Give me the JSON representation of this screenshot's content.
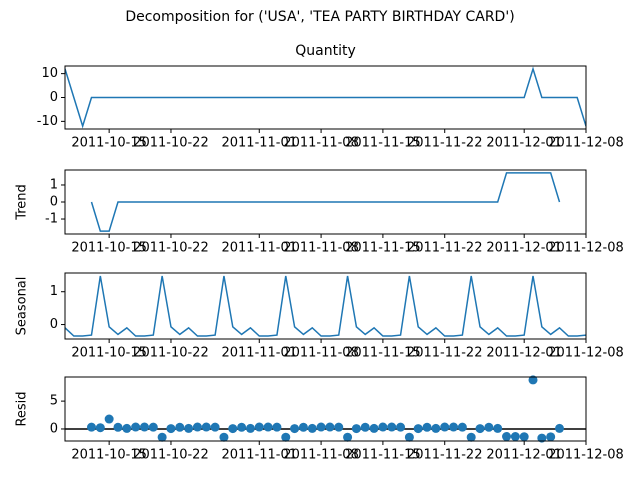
{
  "title": "Decomposition for ('USA', 'TEA PARTY BIRTHDAY CARD')",
  "chart_data": [
    {
      "type": "line",
      "title": "Quantity",
      "color": "#1f77b4",
      "x": [
        "2011-10-10",
        "2011-10-11",
        "2011-10-12",
        "2011-10-13",
        "2011-10-14",
        "2011-10-15",
        "2011-10-16",
        "2011-10-17",
        "2011-10-18",
        "2011-10-19",
        "2011-10-20",
        "2011-10-21",
        "2011-10-22",
        "2011-10-23",
        "2011-10-24",
        "2011-10-25",
        "2011-10-26",
        "2011-10-27",
        "2011-10-28",
        "2011-10-29",
        "2011-10-30",
        "2011-10-31",
        "2011-11-01",
        "2011-11-02",
        "2011-11-03",
        "2011-11-04",
        "2011-11-05",
        "2011-11-06",
        "2011-11-07",
        "2011-11-08",
        "2011-11-09",
        "2011-11-10",
        "2011-11-11",
        "2011-11-12",
        "2011-11-13",
        "2011-11-14",
        "2011-11-15",
        "2011-11-16",
        "2011-11-17",
        "2011-11-18",
        "2011-11-19",
        "2011-11-20",
        "2011-11-21",
        "2011-11-22",
        "2011-11-23",
        "2011-11-24",
        "2011-11-25",
        "2011-11-26",
        "2011-11-27",
        "2011-11-28",
        "2011-11-29",
        "2011-11-30",
        "2011-12-01",
        "2011-12-02",
        "2011-12-03",
        "2011-12-04",
        "2011-12-05",
        "2011-12-06",
        "2011-12-07",
        "2011-12-08"
      ],
      "values": [
        12,
        0,
        -12,
        0,
        0,
        0,
        0,
        0,
        0,
        0,
        0,
        0,
        0,
        0,
        0,
        0,
        0,
        0,
        0,
        0,
        0,
        0,
        0,
        0,
        0,
        0,
        0,
        0,
        0,
        0,
        0,
        0,
        0,
        0,
        0,
        0,
        0,
        0,
        0,
        0,
        0,
        0,
        0,
        0,
        0,
        0,
        0,
        0,
        0,
        0,
        0,
        0,
        0,
        12,
        0,
        0,
        0,
        0,
        0,
        -12
      ],
      "xlim": [
        "2011-10-10",
        "2011-12-08"
      ],
      "xticks": [
        "2011-10-15",
        "2011-10-22",
        "2011-11-01",
        "2011-11-08",
        "2011-11-15",
        "2011-11-22",
        "2011-12-01",
        "2011-12-08"
      ],
      "ylim": [
        -13.2,
        13.2
      ],
      "yticks": [
        -10,
        0,
        10
      ]
    },
    {
      "type": "line",
      "y_label": "Trend",
      "color": "#1f77b4",
      "x": [
        "2011-10-10",
        "2011-10-11",
        "2011-10-12",
        "2011-10-13",
        "2011-10-14",
        "2011-10-15",
        "2011-10-16",
        "2011-10-17",
        "2011-10-18",
        "2011-10-19",
        "2011-10-20",
        "2011-10-21",
        "2011-10-22",
        "2011-10-23",
        "2011-10-24",
        "2011-10-25",
        "2011-10-26",
        "2011-10-27",
        "2011-10-28",
        "2011-10-29",
        "2011-10-30",
        "2011-10-31",
        "2011-11-01",
        "2011-11-02",
        "2011-11-03",
        "2011-11-04",
        "2011-11-05",
        "2011-11-06",
        "2011-11-07",
        "2011-11-08",
        "2011-11-09",
        "2011-11-10",
        "2011-11-11",
        "2011-11-12",
        "2011-11-13",
        "2011-11-14",
        "2011-11-15",
        "2011-11-16",
        "2011-11-17",
        "2011-11-18",
        "2011-11-19",
        "2011-11-20",
        "2011-11-21",
        "2011-11-22",
        "2011-11-23",
        "2011-11-24",
        "2011-11-25",
        "2011-11-26",
        "2011-11-27",
        "2011-11-28",
        "2011-11-29",
        "2011-11-30",
        "2011-12-01",
        "2011-12-02",
        "2011-12-03",
        "2011-12-04",
        "2011-12-05",
        "2011-12-06",
        "2011-12-07",
        "2011-12-08"
      ],
      "values": [
        null,
        null,
        null,
        0,
        -1.71,
        -1.71,
        0,
        0,
        0,
        0,
        0,
        0,
        0,
        0,
        0,
        0,
        0,
        0,
        0,
        0,
        0,
        0,
        0,
        0,
        0,
        0,
        0,
        0,
        0,
        0,
        0,
        0,
        0,
        0,
        0,
        0,
        0,
        0,
        0,
        0,
        0,
        0,
        0,
        0,
        0,
        0,
        0,
        0,
        0,
        0,
        1.71,
        1.71,
        1.71,
        1.71,
        1.71,
        1.71,
        0,
        null,
        null,
        null
      ],
      "xlim": [
        "2011-10-10",
        "2011-12-08"
      ],
      "xticks": [
        "2011-10-15",
        "2011-10-22",
        "2011-11-01",
        "2011-11-08",
        "2011-11-15",
        "2011-11-22",
        "2011-12-01",
        "2011-12-08"
      ],
      "ylim": [
        -1.88,
        1.88
      ],
      "yticks": [
        -1,
        0,
        1
      ]
    },
    {
      "type": "line",
      "y_label": "Seasonal",
      "color": "#1f77b4",
      "x": [
        "2011-10-10",
        "2011-10-11",
        "2011-10-12",
        "2011-10-13",
        "2011-10-14",
        "2011-10-15",
        "2011-10-16",
        "2011-10-17",
        "2011-10-18",
        "2011-10-19",
        "2011-10-20",
        "2011-10-21",
        "2011-10-22",
        "2011-10-23",
        "2011-10-24",
        "2011-10-25",
        "2011-10-26",
        "2011-10-27",
        "2011-10-28",
        "2011-10-29",
        "2011-10-30",
        "2011-10-31",
        "2011-11-01",
        "2011-11-02",
        "2011-11-03",
        "2011-11-04",
        "2011-11-05",
        "2011-11-06",
        "2011-11-07",
        "2011-11-08",
        "2011-11-09",
        "2011-11-10",
        "2011-11-11",
        "2011-11-12",
        "2011-11-13",
        "2011-11-14",
        "2011-11-15",
        "2011-11-16",
        "2011-11-17",
        "2011-11-18",
        "2011-11-19",
        "2011-11-20",
        "2011-11-21",
        "2011-11-22",
        "2011-11-23",
        "2011-11-24",
        "2011-11-25",
        "2011-11-26",
        "2011-11-27",
        "2011-11-28",
        "2011-11-29",
        "2011-11-30",
        "2011-12-01",
        "2011-12-02",
        "2011-12-03",
        "2011-12-04",
        "2011-12-05",
        "2011-12-06",
        "2011-12-07",
        "2011-12-08"
      ],
      "values": [
        -0.1,
        -0.35,
        -0.35,
        -0.32,
        1.48,
        -0.07,
        -0.3,
        -0.1,
        -0.35,
        -0.35,
        -0.32,
        1.48,
        -0.07,
        -0.3,
        -0.1,
        -0.35,
        -0.35,
        -0.32,
        1.48,
        -0.07,
        -0.3,
        -0.1,
        -0.35,
        -0.35,
        -0.32,
        1.48,
        -0.07,
        -0.3,
        -0.1,
        -0.35,
        -0.35,
        -0.32,
        1.48,
        -0.07,
        -0.3,
        -0.1,
        -0.35,
        -0.35,
        -0.32,
        1.48,
        -0.07,
        -0.3,
        -0.1,
        -0.35,
        -0.35,
        -0.32,
        1.48,
        -0.07,
        -0.3,
        -0.1,
        -0.35,
        -0.35,
        -0.32,
        1.48,
        -0.07,
        -0.3,
        -0.1,
        -0.35,
        -0.35,
        -0.32
      ],
      "xlim": [
        "2011-10-10",
        "2011-12-08"
      ],
      "xticks": [
        "2011-10-15",
        "2011-10-22",
        "2011-11-01",
        "2011-11-08",
        "2011-11-15",
        "2011-11-22",
        "2011-12-01",
        "2011-12-08"
      ],
      "ylim": [
        -0.44,
        1.57
      ],
      "yticks": [
        0,
        1
      ]
    },
    {
      "type": "scatter",
      "y_label": "Resid",
      "color": "#1f77b4",
      "zero_line": 0,
      "x": [
        "2011-10-10",
        "2011-10-11",
        "2011-10-12",
        "2011-10-13",
        "2011-10-14",
        "2011-10-15",
        "2011-10-16",
        "2011-10-17",
        "2011-10-18",
        "2011-10-19",
        "2011-10-20",
        "2011-10-21",
        "2011-10-22",
        "2011-10-23",
        "2011-10-24",
        "2011-10-25",
        "2011-10-26",
        "2011-10-27",
        "2011-10-28",
        "2011-10-29",
        "2011-10-30",
        "2011-10-31",
        "2011-11-01",
        "2011-11-02",
        "2011-11-03",
        "2011-11-04",
        "2011-11-05",
        "2011-11-06",
        "2011-11-07",
        "2011-11-08",
        "2011-11-09",
        "2011-11-10",
        "2011-11-11",
        "2011-11-12",
        "2011-11-13",
        "2011-11-14",
        "2011-11-15",
        "2011-11-16",
        "2011-11-17",
        "2011-11-18",
        "2011-11-19",
        "2011-11-20",
        "2011-11-21",
        "2011-11-22",
        "2011-11-23",
        "2011-11-24",
        "2011-11-25",
        "2011-11-26",
        "2011-11-27",
        "2011-11-28",
        "2011-11-29",
        "2011-11-30",
        "2011-12-01",
        "2011-12-02",
        "2011-12-03",
        "2011-12-04",
        "2011-12-05",
        "2011-12-06",
        "2011-12-07",
        "2011-12-08"
      ],
      "values": [
        null,
        null,
        null,
        0.32,
        0.23,
        1.78,
        0.3,
        0.1,
        0.35,
        0.35,
        0.32,
        -1.48,
        0.07,
        0.3,
        0.1,
        0.35,
        0.35,
        0.32,
        -1.48,
        0.07,
        0.3,
        0.1,
        0.35,
        0.35,
        0.32,
        -1.48,
        0.07,
        0.3,
        0.1,
        0.35,
        0.35,
        0.32,
        -1.48,
        0.07,
        0.3,
        0.1,
        0.35,
        0.35,
        0.32,
        -1.48,
        0.07,
        0.3,
        0.1,
        0.35,
        0.35,
        0.32,
        -1.48,
        0.07,
        0.3,
        0.1,
        -1.36,
        -1.36,
        -1.39,
        8.81,
        -1.64,
        -1.41,
        0.1,
        null,
        null,
        null
      ],
      "xlim": [
        "2011-10-10",
        "2011-12-08"
      ],
      "xticks": [
        "2011-10-15",
        "2011-10-22",
        "2011-11-01",
        "2011-11-08",
        "2011-11-15",
        "2011-11-22",
        "2011-12-01",
        "2011-12-08"
      ],
      "ylim": [
        -2.16,
        9.33
      ],
      "yticks": [
        0,
        5
      ]
    }
  ]
}
